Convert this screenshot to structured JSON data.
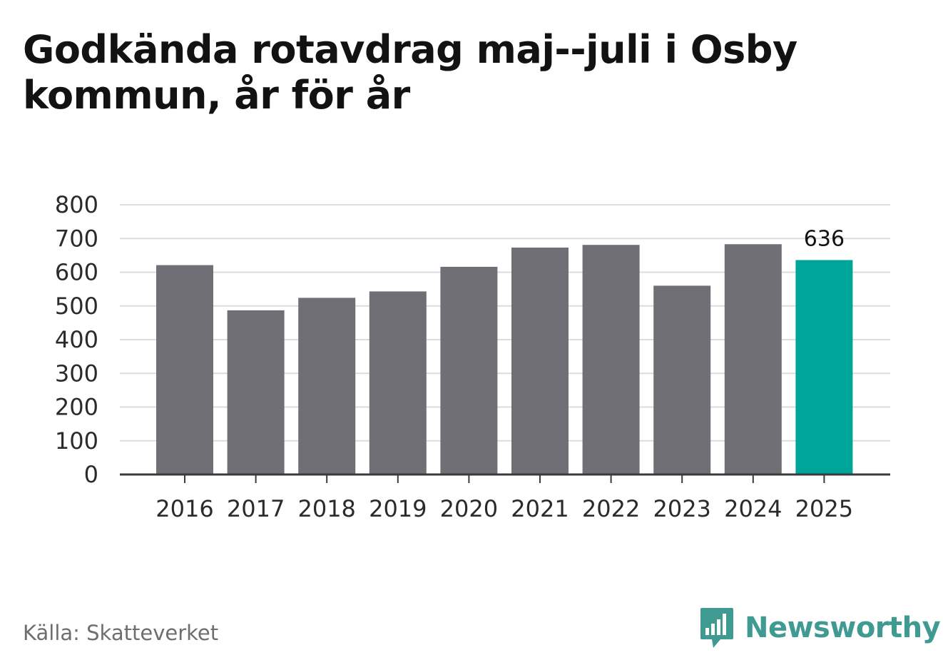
{
  "chart_data": {
    "type": "bar",
    "title": "Godkända rotavdrag maj--juli i Osby kommun, år för år",
    "categories": [
      "2016",
      "2017",
      "2018",
      "2019",
      "2020",
      "2021",
      "2022",
      "2023",
      "2024",
      "2025"
    ],
    "values": [
      621,
      487,
      524,
      543,
      616,
      673,
      681,
      560,
      683,
      636
    ],
    "ylim": [
      0,
      800
    ],
    "yticks": [
      0,
      100,
      200,
      300,
      400,
      500,
      600,
      700,
      800
    ],
    "grid": true,
    "highlight_index": 9,
    "annotations": [
      {
        "category": "2025",
        "label": "636"
      }
    ],
    "colors": {
      "bar": "#706f75",
      "highlight": "#00a59a",
      "grid": "#dcdcdc",
      "axis": "#3a3a3a"
    }
  },
  "source": "Källa: Skatteverket",
  "brand": {
    "name": "Newsworthy",
    "icon": "bar-chart-speech-bubble-icon",
    "color": "#3f9a92"
  }
}
